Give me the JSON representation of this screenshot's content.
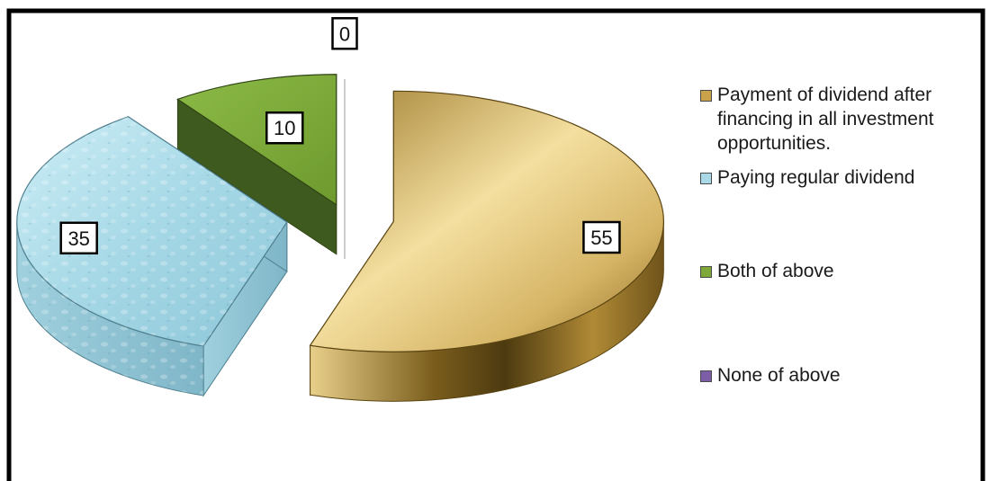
{
  "chart_data": {
    "type": "pie",
    "style": "3d-exploded",
    "title": "",
    "categories": [
      "Payment of dividend after financing in all investment opportunities.",
      "Paying regular dividend",
      "Both of above",
      "None of above"
    ],
    "values": [
      55,
      35,
      10,
      0
    ],
    "data_labels": [
      "55",
      "35",
      "10",
      "0"
    ],
    "legend_position": "right",
    "colors": [
      "#c9a24a",
      "#a9d9e6",
      "#7fa83a",
      "#7b5ea7"
    ]
  }
}
